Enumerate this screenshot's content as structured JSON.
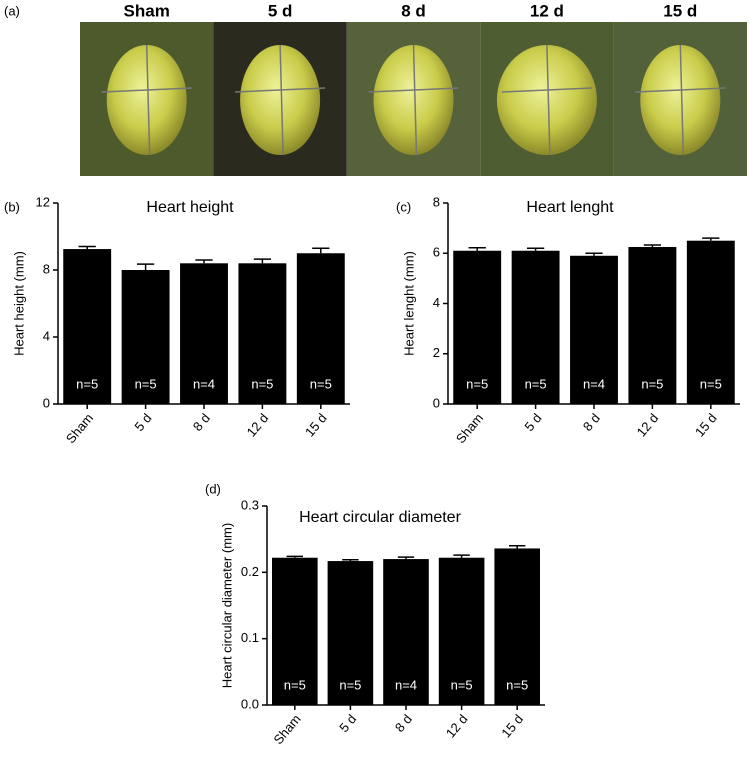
{
  "photo_panel": {
    "panel_label": "(a)",
    "titles": [
      "Sham",
      "5 d",
      "8 d",
      "12 d",
      "15 d"
    ]
  },
  "chart_data": [
    {
      "type": "bar",
      "panel_label": "(b)",
      "title": "Heart height",
      "y_label": "Heart height (mm)",
      "categories": [
        "Sham",
        "5 d",
        "8 d",
        "12 d",
        "15 d"
      ],
      "values": [
        9.25,
        8.0,
        8.4,
        8.4,
        9.0
      ],
      "errors": [
        0.15,
        0.35,
        0.2,
        0.25,
        0.3
      ],
      "annotations": [
        "n=5",
        "n=5",
        "n=4",
        "n=5",
        "n=5"
      ],
      "color": "#000000",
      "ylim": [
        0,
        12
      ],
      "yticks": [
        0,
        4,
        8,
        12
      ]
    },
    {
      "type": "bar",
      "panel_label": "(c)",
      "title": "Heart lenght",
      "y_label": "Heart lenght (mm)",
      "categories": [
        "Sham",
        "5 d",
        "8 d",
        "12 d",
        "15 d"
      ],
      "values": [
        6.1,
        6.1,
        5.9,
        6.25,
        6.5
      ],
      "errors": [
        0.12,
        0.1,
        0.1,
        0.08,
        0.1
      ],
      "annotations": [
        "n=5",
        "n=5",
        "n=4",
        "n=5",
        "n=5"
      ],
      "color": "#000000",
      "ylim": [
        0,
        8
      ],
      "yticks": [
        0,
        2,
        4,
        6,
        8
      ]
    },
    {
      "type": "bar",
      "panel_label": "(d)",
      "title": "Heart circular diameter",
      "y_label": "Heart circular diameter (mm)",
      "categories": [
        "Sham",
        "5 d",
        "8 d",
        "12 d",
        "15 d"
      ],
      "values": [
        0.222,
        0.217,
        0.22,
        0.222,
        0.236
      ],
      "errors": [
        0.002,
        0.002,
        0.003,
        0.004,
        0.004
      ],
      "annotations": [
        "n=5",
        "n=5",
        "n=4",
        "n=5",
        "n=5"
      ],
      "color": "#000000",
      "ylim": [
        0,
        0.3
      ],
      "yticks": [
        {
          "value": 0,
          "label": "0.0"
        },
        0.1,
        0.2,
        0.3
      ]
    }
  ]
}
